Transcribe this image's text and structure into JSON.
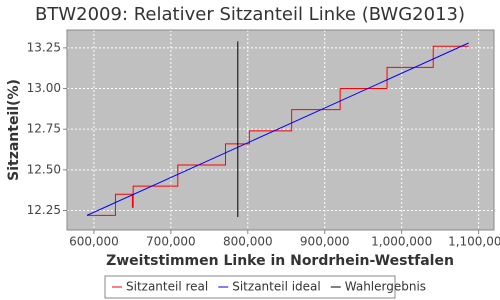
{
  "chart_data": {
    "type": "line",
    "title": "BTW2009: Relativer Sitzanteil Linke (BWG2013)",
    "x_label": "Zweitstimmen Linke in Nordrhein-Westfalen",
    "y_label": "Sitzanteil(%)",
    "xlim": [
      565000,
      1120000
    ],
    "ylim": [
      12.13,
      13.36
    ],
    "xticks": [
      {
        "value": 600000,
        "label": "600,000"
      },
      {
        "value": 700000,
        "label": "700,000"
      },
      {
        "value": 800000,
        "label": "800,000"
      },
      {
        "value": 900000,
        "label": "900,000"
      },
      {
        "value": 1000000,
        "label": "1,000,000"
      },
      {
        "value": 1100000,
        "label": "1,100,000"
      }
    ],
    "yticks": [
      12.25,
      {
        "value": 12.5,
        "label": "12.50"
      },
      12.75,
      {
        "value": 13,
        "label": "13.00"
      },
      13.25
    ],
    "grid": true,
    "series": [
      {
        "name": "Sitzanteil real",
        "color": "#ff0000",
        "x": [
          591000,
          628000,
          628000,
          650000,
          650000,
          651000,
          651000,
          709000,
          709000,
          771000,
          771000,
          802000,
          802000,
          857000,
          857000,
          920000,
          920000,
          981000,
          981000,
          1041000,
          1041000,
          1087000
        ],
        "values": [
          12.22,
          12.22,
          12.35,
          12.35,
          12.27,
          12.27,
          12.4,
          12.4,
          12.53,
          12.53,
          12.66,
          12.66,
          12.74,
          12.74,
          12.87,
          12.87,
          13,
          13,
          13.13,
          13.13,
          13.26,
          13.26
        ]
      },
      {
        "name": "Sitzanteil ideal",
        "color": "#0000ff",
        "x": [
          591000,
          1087000
        ],
        "values": [
          12.22,
          13.28
        ]
      },
      {
        "name": "Wahlergebnis",
        "color": "#000000",
        "x": [
          787000,
          787000
        ],
        "values": [
          12.21,
          13.29
        ]
      }
    ]
  }
}
